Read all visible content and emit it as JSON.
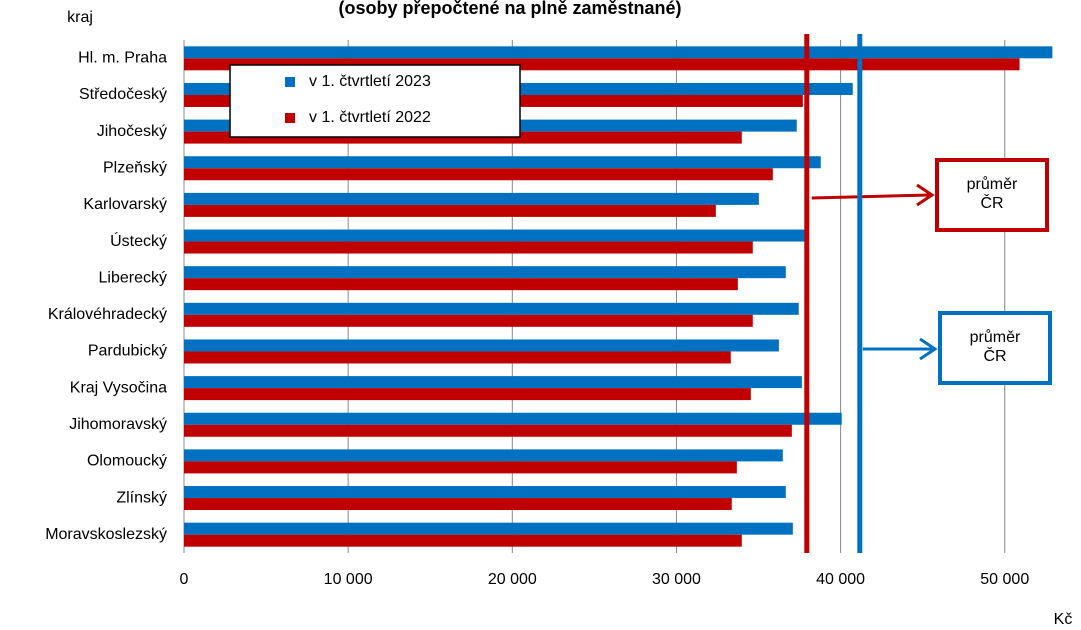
{
  "chart_data": {
    "type": "hbar",
    "title": "(osoby přepočtené na plně zaměstnané)",
    "y_axis_label": "kraj",
    "x_axis_label": "Kč",
    "categories": [
      "Hl. m. Praha",
      "Středočeský",
      "Jihočeský",
      "Plzeňský",
      "Karlovarský",
      "Ústecký",
      "Liberecký",
      "Královéhradecký",
      "Pardubický",
      "Kraj Vysočina",
      "Jihomoravský",
      "Olomoucký",
      "Zlínský",
      "Moravskoslezský"
    ],
    "series": [
      {
        "name": "v 1. čtvrtletí 2023",
        "color": "#0070c0",
        "values": [
          52900,
          40740,
          37330,
          38790,
          35020,
          37820,
          36660,
          37450,
          36240,
          37640,
          40070,
          36480,
          36660,
          37090
        ]
      },
      {
        "name": "v 1. čtvrtletí 2022",
        "color": "#c00000",
        "values": [
          50900,
          37700,
          33980,
          35870,
          32400,
          34650,
          33740,
          34650,
          33310,
          34530,
          37030,
          33680,
          33370,
          33980
        ]
      }
    ],
    "xlim": [
      0,
      53000
    ],
    "xticks": [
      0,
      {
        "value": 10000,
        "label": "10 000"
      },
      {
        "value": 20000,
        "label": "20 000"
      },
      {
        "value": 30000,
        "label": "30 000"
      },
      {
        "value": 40000,
        "label": "40 000"
      },
      {
        "value": 50000,
        "label": "50 000"
      }
    ],
    "grid": true,
    "legend": "top-left",
    "annotations": [
      {
        "lines": [
          "průměr",
          "ČR"
        ],
        "value": 37940,
        "color": "#c00000"
      },
      {
        "lines": [
          "průměr",
          "ČR"
        ],
        "value": 41170,
        "color": "#0070c0"
      }
    ]
  }
}
